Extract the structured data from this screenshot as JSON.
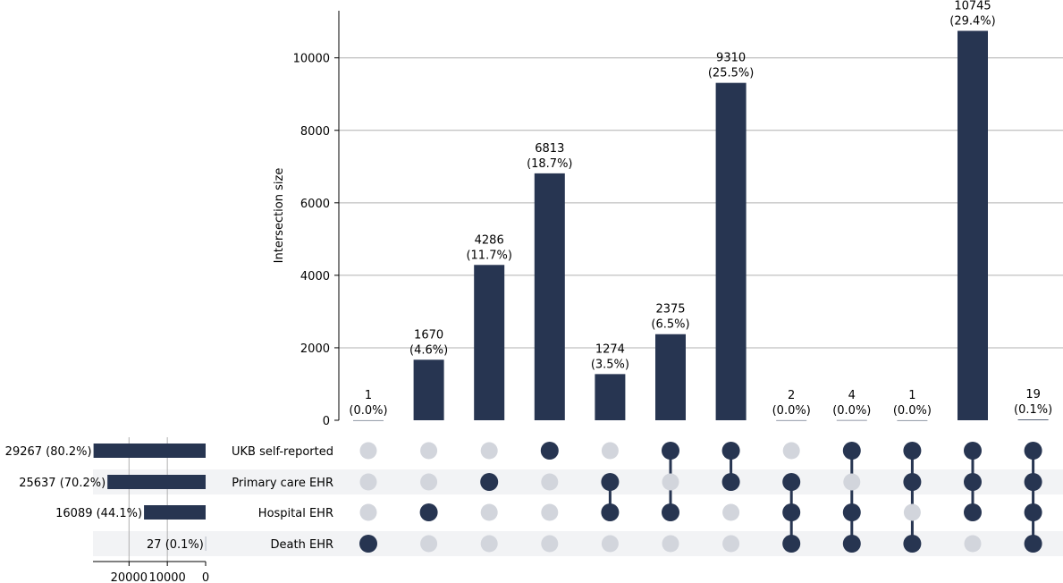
{
  "chart_data": {
    "type": "upset",
    "ylabel": "Intersection size",
    "ylim": [
      0,
      11250
    ],
    "yticks": [
      0,
      2000,
      4000,
      6000,
      8000,
      10000
    ],
    "grid": true,
    "colors": {
      "bar": "#273551",
      "dot_inactive": "#d2d5dc",
      "row_shade": "#f2f3f5",
      "grid": "#b0b0b0",
      "axis": "#000000"
    },
    "sets": [
      {
        "name": "UKB self-reported",
        "size": 29267,
        "size_label": "29267 (80.2%)"
      },
      {
        "name": "Primary care EHR",
        "size": 25637,
        "size_label": "25637 (70.2%)"
      },
      {
        "name": "Hospital EHR",
        "size": 16089,
        "size_label": "16089 (44.1%)"
      },
      {
        "name": "Death EHR",
        "size": 27,
        "size_label": "27 (0.1%)"
      }
    ],
    "set_size_axis": {
      "ticks": [
        20000,
        10000,
        0
      ],
      "tick_labels": [
        "20000",
        "10000",
        "0"
      ],
      "max": 29267
    },
    "intersections": [
      {
        "value": 1,
        "value_label": "1",
        "pct_label": "(0.0%)",
        "members": [
          0,
          0,
          0,
          1
        ]
      },
      {
        "value": 1670,
        "value_label": "1670",
        "pct_label": "(4.6%)",
        "members": [
          0,
          0,
          1,
          0
        ]
      },
      {
        "value": 4286,
        "value_label": "4286",
        "pct_label": "(11.7%)",
        "members": [
          0,
          1,
          0,
          0
        ]
      },
      {
        "value": 6813,
        "value_label": "6813",
        "pct_label": "(18.7%)",
        "members": [
          1,
          0,
          0,
          0
        ]
      },
      {
        "value": 1274,
        "value_label": "1274",
        "pct_label": "(3.5%)",
        "members": [
          0,
          1,
          1,
          0
        ]
      },
      {
        "value": 2375,
        "value_label": "2375",
        "pct_label": "(6.5%)",
        "members": [
          1,
          0,
          1,
          0
        ]
      },
      {
        "value": 9310,
        "value_label": "9310",
        "pct_label": "(25.5%)",
        "members": [
          1,
          1,
          0,
          0
        ]
      },
      {
        "value": 2,
        "value_label": "2",
        "pct_label": "(0.0%)",
        "members": [
          0,
          1,
          1,
          1
        ]
      },
      {
        "value": 4,
        "value_label": "4",
        "pct_label": "(0.0%)",
        "members": [
          1,
          0,
          1,
          1
        ]
      },
      {
        "value": 1,
        "value_label": "1",
        "pct_label": "(0.0%)",
        "members": [
          1,
          1,
          0,
          1
        ]
      },
      {
        "value": 10745,
        "value_label": "10745",
        "pct_label": "(29.4%)",
        "members": [
          1,
          1,
          1,
          0
        ]
      },
      {
        "value": 19,
        "value_label": "19",
        "pct_label": "(0.1%)",
        "members": [
          1,
          1,
          1,
          1
        ]
      }
    ]
  }
}
